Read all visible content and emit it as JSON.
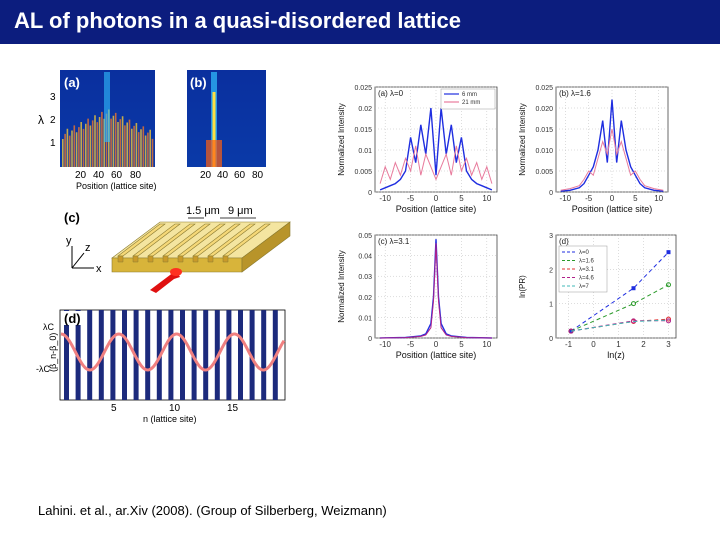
{
  "slide": {
    "title": "AL of photons in a quasi-disordered lattice",
    "citation": "Lahini. et al., ar.Xiv (2008). (Group of Silberberg, Weizmann)"
  },
  "colors": {
    "header_bg": "#0c1d7e",
    "series_blue": "#1f2ee0",
    "series_pink": "#e87a9c",
    "series_magenta": "#b0208a",
    "bar_navy": "#1c2a7c",
    "salmon": "#f08080",
    "gold": "#d8b43a"
  },
  "panel_a": {
    "label": "(a)",
    "ylabel": "λ",
    "yticks": [
      "3",
      "2",
      "1"
    ],
    "xticks": [
      "20",
      "40",
      "60",
      "80"
    ],
    "xlabel": "Position (lattice site)"
  },
  "panel_b": {
    "label": "(b)",
    "xticks": [
      "20",
      "40",
      "60",
      "80"
    ]
  },
  "panel_c": {
    "label": "(c)",
    "dim1": "1.5 μm",
    "dim2": "9 μm",
    "axis_y": "y",
    "axis_z": "z",
    "axis_x": "x"
  },
  "panel_d": {
    "label": "(d)",
    "ylabel": "(β_n-β_0)",
    "yticks": [
      "λC",
      "-λC"
    ],
    "xticks": [
      "5",
      "10",
      "15"
    ],
    "xlabel": "n (lattice site)"
  },
  "chart_data": [
    {
      "type": "line",
      "panel": "intensity_lambda0",
      "title": "(a) λ=0",
      "xlabel": "Position (lattice site)",
      "ylabel": "Normalized Intensity",
      "xlim": [
        -12,
        12
      ],
      "ylim": [
        0,
        0.025
      ],
      "xticks": [
        "-10",
        "-5",
        "0",
        "5",
        "10"
      ],
      "yticks": [
        "0.025",
        "0.02",
        "0.015",
        "0.01",
        "0.005",
        "0"
      ],
      "series": [
        {
          "name": "6 mm",
          "x": [
            -11,
            -10,
            -9,
            -8,
            -7,
            -6,
            -5,
            -4,
            -3,
            -2,
            -1,
            0,
            1,
            2,
            3,
            4,
            5,
            6,
            7,
            8,
            9,
            10,
            11
          ],
          "values": [
            0.0005,
            0.001,
            0.0015,
            0.002,
            0.003,
            0.005,
            0.013,
            0.007,
            0.016,
            0.009,
            0.02,
            0.004,
            0.02,
            0.009,
            0.016,
            0.007,
            0.013,
            0.005,
            0.003,
            0.002,
            0.0015,
            0.001,
            0.0005
          ]
        },
        {
          "name": "21 mm",
          "x": [
            -11,
            -10,
            -9,
            -8,
            -7,
            -6,
            -5,
            -4,
            -3,
            -2,
            -1,
            0,
            1,
            2,
            3,
            4,
            5,
            6,
            7,
            8,
            9,
            10,
            11
          ],
          "values": [
            0.002,
            0.006,
            0.003,
            0.007,
            0.004,
            0.008,
            0.005,
            0.011,
            0.004,
            0.009,
            0.006,
            0.003,
            0.006,
            0.009,
            0.004,
            0.011,
            0.005,
            0.008,
            0.004,
            0.007,
            0.003,
            0.006,
            0.002
          ]
        }
      ]
    },
    {
      "type": "line",
      "panel": "intensity_lambda1_6",
      "title": "(b) λ=1.6",
      "xlabel": "Position (lattice site)",
      "ylabel": "Normalized Intensity",
      "xlim": [
        -12,
        12
      ],
      "ylim": [
        0,
        0.025
      ],
      "xticks": [
        "-10",
        "-5",
        "0",
        "5",
        "10"
      ],
      "yticks": [
        "0.025",
        "0.020",
        "0.015",
        "0.010",
        "0.005",
        "0"
      ],
      "series": [
        {
          "name": "6 mm",
          "x": [
            -11,
            -9,
            -7,
            -6,
            -5,
            -4,
            -3,
            -2,
            -1,
            0,
            1,
            2,
            3,
            4,
            5,
            6,
            7,
            9,
            11
          ],
          "values": [
            0.0002,
            0.0004,
            0.001,
            0.002,
            0.004,
            0.006,
            0.01,
            0.017,
            0.007,
            0.022,
            0.007,
            0.017,
            0.01,
            0.006,
            0.004,
            0.002,
            0.001,
            0.0004,
            0.0002
          ]
        },
        {
          "name": "21 mm",
          "x": [
            -11,
            -9,
            -7,
            -6,
            -5,
            -4,
            -3,
            -2,
            -1,
            0,
            1,
            2,
            3,
            4,
            5,
            6,
            7,
            9,
            11
          ],
          "values": [
            0.0004,
            0.0008,
            0.0015,
            0.003,
            0.005,
            0.004,
            0.008,
            0.012,
            0.009,
            0.015,
            0.009,
            0.012,
            0.008,
            0.004,
            0.005,
            0.003,
            0.0015,
            0.0008,
            0.0004
          ]
        }
      ]
    },
    {
      "type": "line",
      "panel": "intensity_lambda3_1",
      "title": "(c) λ=3.1",
      "xlabel": "Position (lattice site)",
      "ylabel": "Normalized Intensity",
      "xlim": [
        -12,
        12
      ],
      "ylim": [
        0,
        0.05
      ],
      "xticks": [
        "-10",
        "-5",
        "0",
        "5",
        "10"
      ],
      "yticks": [
        "0.05",
        "0.04",
        "0.03",
        "0.02",
        "0.01",
        "0"
      ],
      "series": [
        {
          "name": "6 mm",
          "x": [
            -11,
            -6,
            -3,
            -2,
            -1,
            -0.5,
            0,
            0.5,
            1,
            2,
            3,
            6,
            11
          ],
          "values": [
            0.0,
            0.0003,
            0.001,
            0.002,
            0.007,
            0.02,
            0.048,
            0.02,
            0.007,
            0.002,
            0.001,
            0.0003,
            0.0
          ]
        },
        {
          "name": "21 mm",
          "x": [
            -11,
            -6,
            -3,
            -2,
            -1,
            -0.5,
            0,
            0.5,
            1,
            2,
            3,
            6,
            11
          ],
          "values": [
            0.0,
            0.0002,
            0.0008,
            0.0015,
            0.005,
            0.018,
            0.046,
            0.018,
            0.005,
            0.0015,
            0.0008,
            0.0002,
            0.0
          ]
        }
      ]
    },
    {
      "type": "scatter",
      "panel": "ipr_vs_z",
      "title": "(d)",
      "xlabel": "ln(z)",
      "ylabel": "ln(PR)",
      "xlim": [
        -1.5,
        3.3
      ],
      "ylim": [
        0,
        3
      ],
      "xticks": [
        "-1",
        "0",
        "1",
        "2",
        "3"
      ],
      "yticks": [
        "3",
        "2",
        "1",
        "0"
      ],
      "series": [
        {
          "name": "λ=0",
          "color": "#1f2ee0",
          "marker": "square",
          "x": [
            -0.9,
            1.6,
            3.0
          ],
          "values": [
            0.2,
            1.45,
            2.5
          ]
        },
        {
          "name": "λ=1.6",
          "color": "#2a9a2a",
          "marker": "circle",
          "x": [
            -0.9,
            1.6,
            3.0
          ],
          "values": [
            0.2,
            1.0,
            1.55
          ]
        },
        {
          "name": "λ=3.1",
          "color": "#e03030",
          "marker": "star",
          "x": [
            -0.9,
            1.6,
            3.0
          ],
          "values": [
            0.2,
            0.48,
            0.55
          ]
        },
        {
          "name": "λ=4.6",
          "color": "#b0208a",
          "marker": "circle",
          "x": [
            -0.9,
            1.6,
            3.0
          ],
          "values": [
            0.2,
            0.5,
            0.5
          ]
        },
        {
          "name": "λ=7",
          "color": "#40b8b8",
          "marker": "none",
          "x": [
            -0.9,
            1.6,
            3.0
          ],
          "values": [
            0.2,
            0.48,
            0.52
          ]
        }
      ]
    }
  ]
}
